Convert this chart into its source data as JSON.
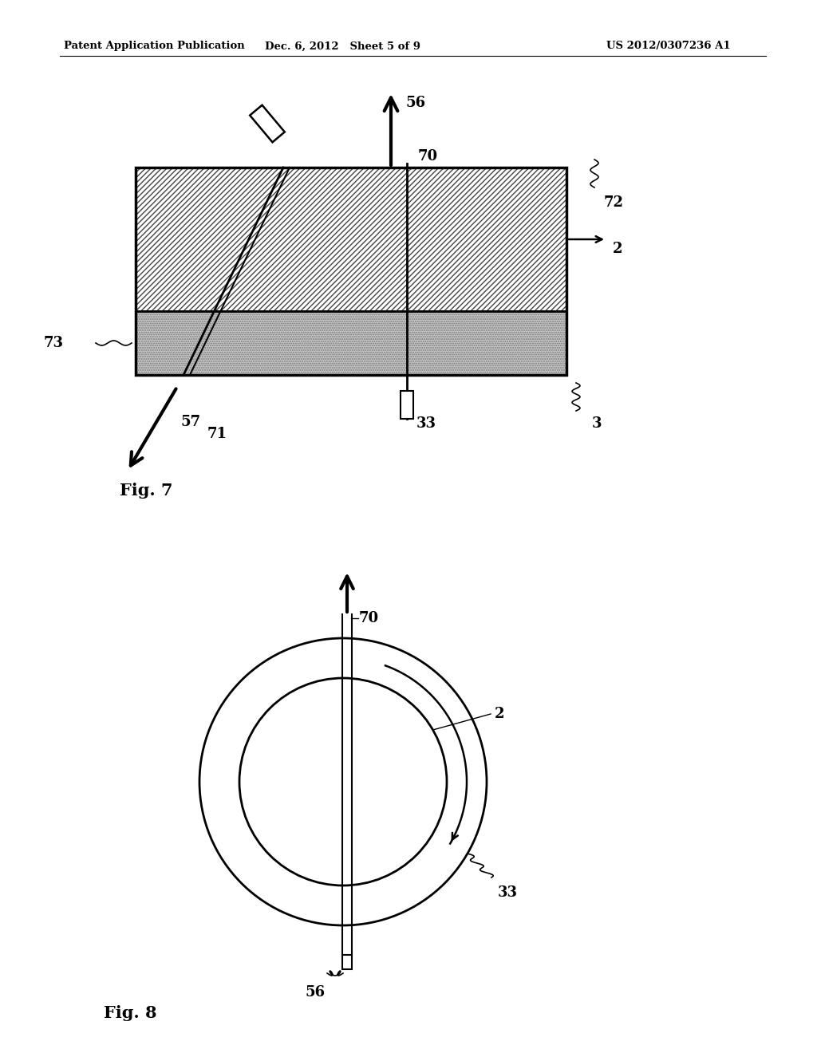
{
  "bg_color": "#ffffff",
  "header_left": "Patent Application Publication",
  "header_mid": "Dec. 6, 2012   Sheet 5 of 9",
  "header_right": "US 2012/0307236 A1",
  "fig7_label": "Fig. 7",
  "fig8_label": "Fig. 8",
  "upper_hatch_color": "#888888",
  "lower_fill_color": "#cccccc"
}
